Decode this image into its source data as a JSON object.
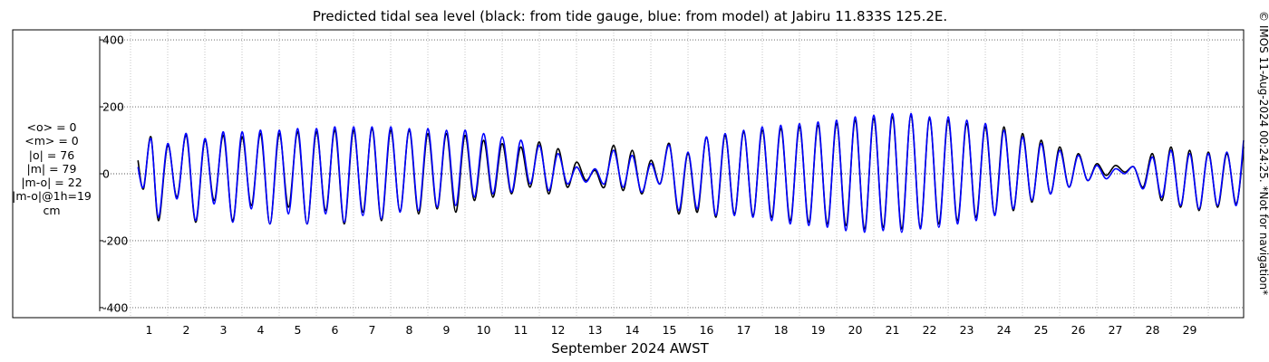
{
  "figure": {
    "title": "Predicted tidal sea level (black: from tide gauge, blue: from model) at Jabiru 11.833S 125.2E.",
    "credit": "© IMOS 11-Aug-2024 00:24:25. *Not for navigation*"
  },
  "stats": [
    "<o> = 0",
    "<m> = 0",
    "|o| = 76",
    "|m| = 79",
    "|m-o| = 22",
    "|m-o|@1h=19",
    "cm"
  ],
  "chart_data": {
    "type": "line",
    "title": "Predicted tidal sea level (black: from tide gauge, blue: from model) at Jabiru 11.833S 125.2E.",
    "xlabel": "September 2024 AWST",
    "ylabel": "",
    "ylim": [
      -430,
      430
    ],
    "xlim": [
      0,
      29.95
    ],
    "yticks": [
      -400,
      -200,
      0,
      200,
      400
    ],
    "ytick_labels": [
      "-400",
      "-200",
      "0",
      "200",
      "400"
    ],
    "xticks": [
      1,
      2,
      3,
      4,
      5,
      6,
      7,
      8,
      9,
      10,
      11,
      12,
      13,
      14,
      15,
      16,
      17,
      18,
      19,
      20,
      21,
      22,
      23,
      24,
      25,
      26,
      27,
      28,
      29
    ],
    "xtick_labels": [
      "1",
      "2",
      "3",
      "4",
      "5",
      "6",
      "7",
      "8",
      "9",
      "10",
      "11",
      "12",
      "13",
      "14",
      "15",
      "16",
      "17",
      "18",
      "19",
      "20",
      "21",
      "22",
      "23",
      "24",
      "25",
      "26",
      "27",
      "28",
      "29"
    ],
    "grid": true,
    "series": [
      {
        "color": "#000000",
        "x": [
          0.2,
          0.35,
          0.55,
          0.75,
          1.0,
          1.25,
          1.5,
          1.75,
          2.0,
          2.25,
          2.5,
          2.75,
          3.0,
          3.25,
          3.5,
          3.75,
          4.0,
          4.25,
          4.5,
          4.75,
          5.0,
          5.25,
          5.5,
          5.75,
          6.0,
          6.25,
          6.5,
          6.75,
          7.0,
          7.25,
          7.5,
          7.75,
          8.0,
          8.25,
          8.5,
          8.75,
          9.0,
          9.25,
          9.5,
          9.75,
          10.0,
          10.25,
          10.5,
          10.75,
          11.0,
          11.25,
          11.5,
          11.75,
          12.0,
          12.25,
          12.5,
          12.75,
          13.0,
          13.25,
          13.5,
          13.75,
          14.0,
          14.25,
          14.5,
          14.75,
          15.0,
          15.25,
          15.5,
          15.75,
          16.0,
          16.25,
          16.5,
          16.75,
          17.0,
          17.25,
          17.5,
          17.75,
          18.0,
          18.25,
          18.5,
          18.75,
          19.0,
          19.25,
          19.5,
          19.75,
          20.0,
          20.25,
          20.5,
          20.75,
          21.0,
          21.25,
          21.5,
          21.75,
          22.0,
          22.25,
          22.5,
          22.75,
          23.0,
          23.25,
          23.5,
          23.75,
          24.0,
          24.25,
          24.5,
          24.75,
          25.0,
          25.25,
          25.5,
          25.75,
          26.0,
          26.25,
          26.5,
          26.75,
          27.0,
          27.25,
          27.5,
          27.75,
          28.0,
          28.25,
          28.5,
          28.75,
          29.0,
          29.25,
          29.5,
          29.75,
          29.95
        ],
        "y": [
          40,
          -45,
          110,
          -140,
          85,
          -70,
          115,
          -145,
          100,
          -80,
          115,
          -140,
          110,
          -95,
          120,
          -150,
          120,
          -100,
          125,
          -150,
          125,
          -110,
          130,
          -150,
          130,
          -115,
          135,
          -140,
          130,
          -110,
          130,
          -120,
          120,
          -105,
          120,
          -115,
          115,
          -80,
          100,
          -70,
          90,
          -60,
          80,
          -40,
          95,
          -60,
          75,
          -40,
          35,
          -20,
          10,
          -40,
          85,
          -50,
          70,
          -60,
          40,
          -30,
          90,
          -120,
          60,
          -115,
          110,
          -130,
          115,
          -120,
          125,
          -125,
          130,
          -130,
          135,
          -140,
          140,
          -145,
          145,
          -150,
          150,
          -155,
          160,
          -165,
          165,
          -160,
          170,
          -165,
          175,
          -160,
          165,
          -150,
          160,
          -140,
          150,
          -130,
          140,
          -120,
          140,
          -110,
          120,
          -85,
          100,
          -60,
          80,
          -40,
          60,
          -20,
          30,
          -5,
          25,
          5,
          20,
          -40,
          60,
          -80,
          80,
          -100,
          70,
          -110,
          65,
          -100,
          60,
          -90,
          80
        ]
      },
      {
        "color": "#0000ff",
        "x": [
          0.2,
          0.35,
          0.55,
          0.75,
          1.0,
          1.25,
          1.5,
          1.75,
          2.0,
          2.25,
          2.5,
          2.75,
          3.0,
          3.25,
          3.5,
          3.75,
          4.0,
          4.25,
          4.5,
          4.75,
          5.0,
          5.25,
          5.5,
          5.75,
          6.0,
          6.25,
          6.5,
          6.75,
          7.0,
          7.25,
          7.5,
          7.75,
          8.0,
          8.25,
          8.5,
          8.75,
          9.0,
          9.25,
          9.5,
          9.75,
          10.0,
          10.25,
          10.5,
          10.75,
          11.0,
          11.25,
          11.5,
          11.75,
          12.0,
          12.25,
          12.5,
          12.75,
          13.0,
          13.25,
          13.5,
          13.75,
          14.0,
          14.25,
          14.5,
          14.75,
          15.0,
          15.25,
          15.5,
          15.75,
          16.0,
          16.25,
          16.5,
          16.75,
          17.0,
          17.25,
          17.5,
          17.75,
          18.0,
          18.25,
          18.5,
          18.75,
          19.0,
          19.25,
          19.5,
          19.75,
          20.0,
          20.25,
          20.5,
          20.75,
          21.0,
          21.25,
          21.5,
          21.75,
          22.0,
          22.25,
          22.5,
          22.75,
          23.0,
          23.25,
          23.5,
          23.75,
          24.0,
          24.25,
          24.5,
          24.75,
          25.0,
          25.25,
          25.5,
          25.75,
          26.0,
          26.25,
          26.5,
          26.75,
          27.0,
          27.25,
          27.5,
          27.75,
          28.0,
          28.25,
          28.5,
          28.75,
          29.0,
          29.25,
          29.5,
          29.75,
          29.95
        ],
        "y": [
          20,
          -40,
          105,
          -130,
          90,
          -75,
          120,
          -140,
          105,
          -90,
          125,
          -145,
          125,
          -105,
          130,
          -150,
          130,
          -120,
          135,
          -150,
          135,
          -120,
          140,
          -145,
          140,
          -125,
          140,
          -135,
          140,
          -115,
          135,
          -110,
          135,
          -100,
          130,
          -95,
          130,
          -70,
          120,
          -60,
          110,
          -55,
          100,
          -30,
          85,
          -50,
          60,
          -30,
          20,
          -25,
          15,
          -30,
          70,
          -40,
          55,
          -55,
          30,
          -30,
          85,
          -110,
          65,
          -105,
          110,
          -125,
          120,
          -125,
          130,
          -130,
          140,
          -140,
          145,
          -150,
          150,
          -155,
          155,
          -160,
          160,
          -170,
          170,
          -175,
          175,
          -170,
          180,
          -175,
          180,
          -165,
          170,
          -160,
          170,
          -150,
          160,
          -140,
          150,
          -125,
          130,
          -105,
          110,
          -80,
          90,
          -60,
          70,
          -40,
          55,
          -20,
          25,
          -15,
          15,
          0,
          20,
          -45,
          50,
          -70,
          70,
          -95,
          60,
          -105,
          60,
          -95,
          65,
          -95,
          100
        ]
      }
    ]
  }
}
